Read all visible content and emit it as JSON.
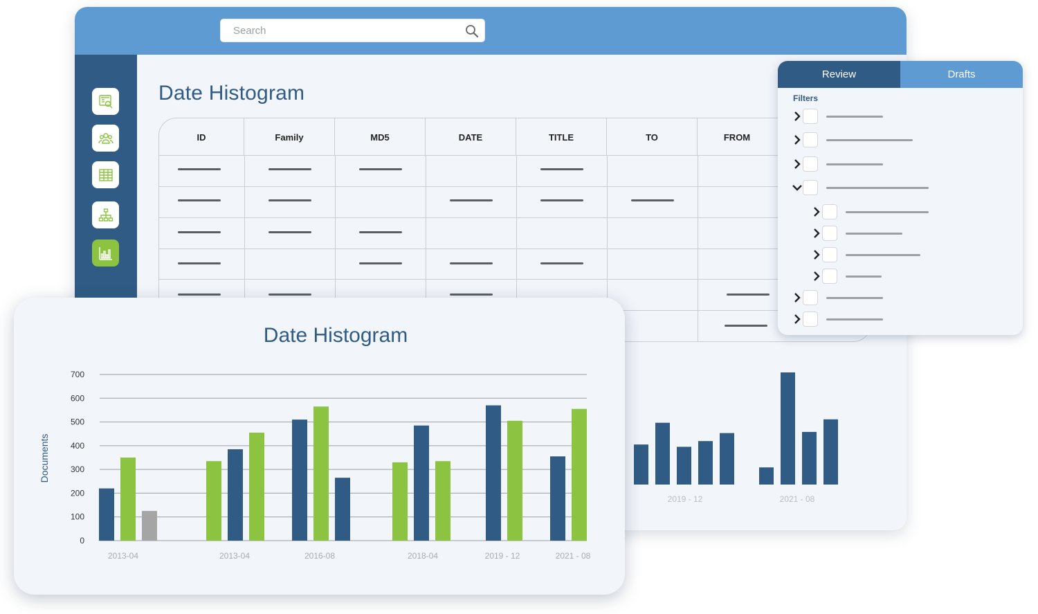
{
  "search": {
    "placeholder": "Search"
  },
  "sidebar": {
    "items": [
      {
        "name": "document-search-icon"
      },
      {
        "name": "users-group-icon"
      },
      {
        "name": "table-grid-icon"
      },
      {
        "name": "hierarchy-icon"
      },
      {
        "name": "bar-chart-icon",
        "active": true
      }
    ]
  },
  "main": {
    "title": "Date Histogram",
    "table": {
      "columns": [
        "ID",
        "Family",
        "MD5",
        "DATE",
        "TITLE",
        "TO",
        "FROM"
      ]
    }
  },
  "filter_panel": {
    "tabs": [
      "Review",
      "Drafts"
    ],
    "active_tab": "Review",
    "label": "Filters"
  },
  "colors": {
    "header_blue": "#5d9bd2",
    "navy": "#305b84",
    "green": "#8cc340",
    "gray": "#a5a5a5"
  },
  "chart_data": [
    {
      "type": "bar",
      "title": "Date Histogram",
      "ylabel": "Documents",
      "xlabel": "",
      "ylim": [
        0,
        700
      ],
      "yticks": [
        0,
        100,
        200,
        300,
        400,
        500,
        600,
        700
      ],
      "xtick_labels": [
        "2013-04",
        "2013-04",
        "2016-08",
        "2018-04",
        "2019 - 12",
        "2021 - 08"
      ],
      "grid": true,
      "bars": [
        {
          "group": 0,
          "color": "navy",
          "value": 220
        },
        {
          "group": 0,
          "color": "green",
          "value": 350
        },
        {
          "group": 0,
          "color": "gray",
          "value": 125
        },
        {
          "group": 1,
          "color": "green",
          "value": 335
        },
        {
          "group": 1,
          "color": "navy",
          "value": 385
        },
        {
          "group": 1,
          "color": "green",
          "value": 455
        },
        {
          "group": 2,
          "color": "navy",
          "value": 510
        },
        {
          "group": 2,
          "color": "green",
          "value": 565
        },
        {
          "group": 2,
          "color": "navy",
          "value": 265
        },
        {
          "group": 3,
          "color": "green",
          "value": 330
        },
        {
          "group": 3,
          "color": "navy",
          "value": 485
        },
        {
          "group": 3,
          "color": "green",
          "value": 335
        },
        {
          "group": 4,
          "color": "navy",
          "value": 570
        },
        {
          "group": 4,
          "color": "green",
          "value": 505
        },
        {
          "group": 5,
          "color": "navy",
          "value": 355
        },
        {
          "group": 5,
          "color": "green",
          "value": 555
        }
      ]
    },
    {
      "type": "bar",
      "partially_hidden": true,
      "xtick_labels": [
        "2019 - 12",
        "2021 - 08"
      ],
      "bars": [
        {
          "group": 0,
          "color": "navy",
          "value": 175
        },
        {
          "group": 0,
          "color": "navy",
          "value": 270
        },
        {
          "group": 0,
          "color": "navy",
          "value": 165
        },
        {
          "group": 0,
          "color": "navy",
          "value": 190
        },
        {
          "group": 0,
          "color": "navy",
          "value": 225
        },
        {
          "group": 1,
          "color": "navy",
          "value": 75
        },
        {
          "group": 1,
          "color": "navy",
          "value": 490
        },
        {
          "group": 1,
          "color": "navy",
          "value": 230
        },
        {
          "group": 1,
          "color": "navy",
          "value": 285
        }
      ]
    }
  ]
}
